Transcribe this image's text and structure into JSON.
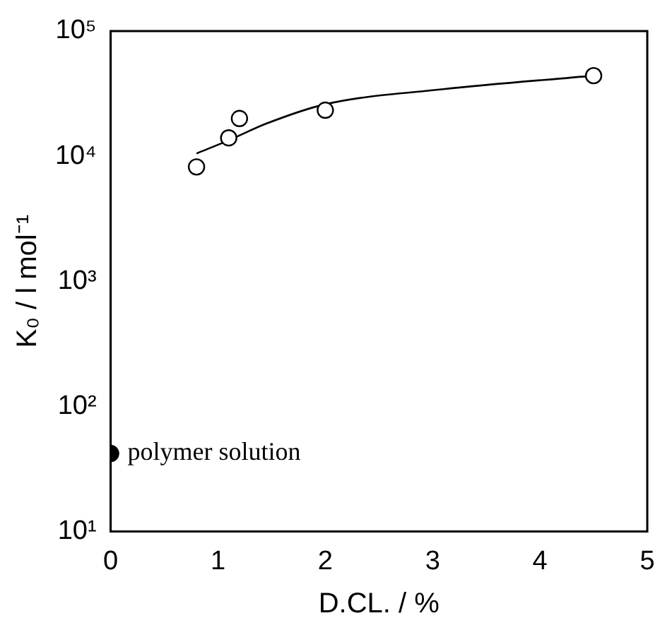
{
  "chart_data": {
    "type": "scatter",
    "xlabel": "D.CL. / %",
    "ylabel": "K₀ / l mol⁻¹",
    "log": "y",
    "grid": false,
    "legend": false,
    "xlim": [
      0,
      5
    ],
    "xticks": [
      0,
      1,
      2,
      3,
      4,
      5
    ],
    "ylim": [
      10,
      100000
    ],
    "yticks": [
      {
        "value": 10,
        "label": "10¹"
      },
      {
        "value": 100,
        "label": "10²"
      },
      {
        "value": 1000,
        "label": "10³"
      },
      {
        "value": 10000,
        "label": "10⁴"
      },
      {
        "value": 100000,
        "label": "10⁵"
      }
    ],
    "series": [
      {
        "marker": "circle",
        "color": "#ffffff",
        "x": [
          0.8,
          1.1,
          1.2,
          2.0,
          4.5
        ],
        "values": [
          8200,
          14000,
          20000,
          23300,
          44000
        ]
      },
      {
        "marker": "circle",
        "color": "#000000",
        "x": [
          0
        ],
        "values": [
          42
        ]
      },
      {
        "type": "line",
        "marker": "none",
        "line_style": "solid",
        "color": "#000000",
        "x": [
          0.8,
          1.1,
          1.45,
          2.0,
          3.1,
          4.5
        ],
        "values": [
          10500,
          13400,
          18200,
          26000,
          34300,
          44000
        ]
      }
    ],
    "annotations": [
      {
        "text": "polymer solution",
        "x": 0,
        "y": 42
      }
    ]
  }
}
